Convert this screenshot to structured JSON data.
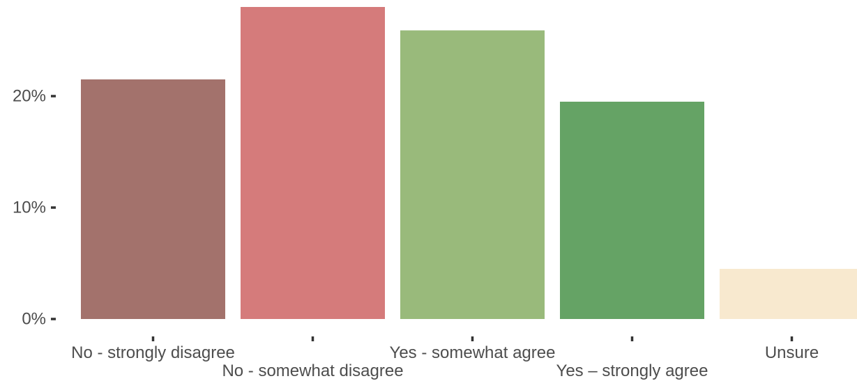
{
  "chart_data": {
    "type": "bar",
    "title": "",
    "xlabel": "",
    "ylabel": "",
    "categories": [
      "No - strongly disagree",
      "No - somewhat disagree",
      "Yes - somewhat agree",
      "Yes – strongly agree",
      "Unsure"
    ],
    "values": [
      21.5,
      28.0,
      25.9,
      19.5,
      4.5
    ],
    "colors": [
      "#a3726c",
      "#d57b7b",
      "#99ba7b",
      "#65a365",
      "#f8e9cf"
    ],
    "y_ticks": [
      0,
      10,
      20
    ],
    "y_tick_labels": [
      "0%",
      "10%",
      "20%"
    ],
    "ylim": [
      0,
      28.0
    ],
    "grid": false,
    "legend": "none",
    "x_label_staggered": true
  }
}
